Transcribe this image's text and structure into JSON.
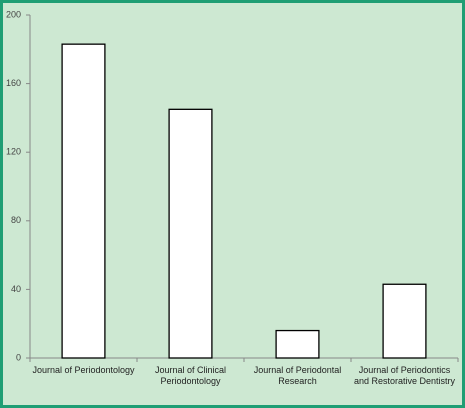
{
  "chart_data": {
    "type": "bar",
    "categories": [
      "Journal of Periodontology",
      "Journal of Clinical Periodontology",
      "Journal of Periodontal Research",
      "Journal of Periodontics and Restorative Dentistry"
    ],
    "values": [
      183,
      145,
      16,
      43
    ],
    "color": "#ffffff",
    "ylim": [
      0,
      200
    ],
    "yticks": [
      0,
      40,
      80,
      120,
      160,
      200
    ],
    "grid": false
  }
}
